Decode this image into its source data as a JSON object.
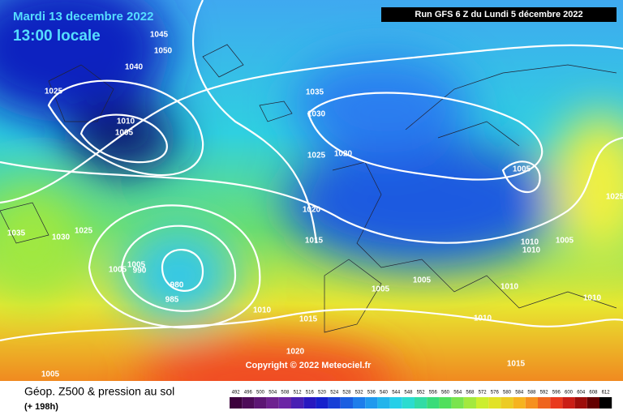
{
  "header": {
    "date": "Mardi 13 decembre 2022",
    "time": "13:00 locale",
    "run": "Run GFS 6 Z du Lundi 5 décembre 2022"
  },
  "copyright": "Copyright © 2022 Meteociel.fr",
  "footer": {
    "title": "Géop. Z500 & pression au sol",
    "lead": "(+ 198h)"
  },
  "isobar_labels": [
    "1045",
    "1050",
    "1040",
    "1025",
    "1010",
    "1005",
    "1035",
    "1030",
    "1025",
    "1020",
    "1020",
    "1015",
    "1035",
    "1030",
    "1025",
    "1005",
    "1005",
    "990",
    "980",
    "985",
    "1010",
    "1015",
    "1005",
    "1005",
    "1020",
    "1005",
    "1005",
    "1010",
    "1010",
    "1005",
    "1010",
    "1010",
    "1010",
    "1015",
    "1025"
  ],
  "scale": [
    492,
    496,
    500,
    504,
    508,
    512,
    516,
    520,
    524,
    528,
    532,
    536,
    540,
    544,
    548,
    552,
    556,
    560,
    564,
    568,
    572,
    576,
    580,
    584,
    588,
    592,
    596,
    600,
    604,
    608,
    612
  ]
}
